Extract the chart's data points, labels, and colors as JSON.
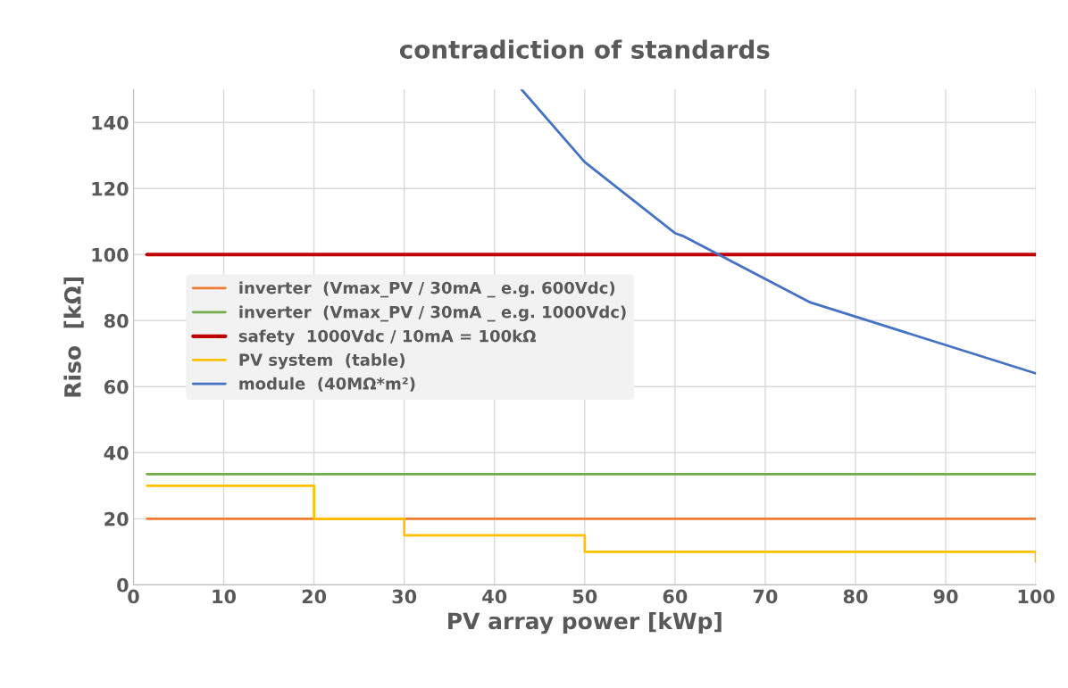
{
  "chart_data": {
    "type": "line",
    "title": "contradiction of standards",
    "xlabel": "PV array power [kWp]",
    "ylabel": "Riso  [kΩ]",
    "xlim": [
      0,
      100
    ],
    "ylim": [
      0,
      150
    ],
    "xticks": [
      0,
      10,
      20,
      30,
      40,
      50,
      60,
      70,
      80,
      90,
      100
    ],
    "yticks": [
      0,
      20,
      40,
      60,
      80,
      100,
      120,
      140
    ],
    "grid": true,
    "legend": "center left",
    "series": [
      {
        "name": "inverter  (Vmax_PV / 30mA _ e.g. 600Vdc)",
        "color": "#ed7d31",
        "x": [
          1.5,
          100
        ],
        "values": [
          20,
          20
        ]
      },
      {
        "name": "inverter  (Vmax_PV / 30mA _ e.g. 1000Vdc)",
        "color": "#70ad47",
        "x": [
          1.5,
          100
        ],
        "values": [
          33.5,
          33.5
        ]
      },
      {
        "name": "safety  1000Vdc / 10mA = 100kΩ",
        "color": "#c00000",
        "x": [
          1.5,
          100
        ],
        "values": [
          100,
          100
        ]
      },
      {
        "name": "PV system  (table)",
        "color": "#ffc000",
        "type": "step",
        "x": [
          1.5,
          20,
          30,
          50,
          100,
          100
        ],
        "values": [
          30,
          20,
          15,
          10,
          10,
          7
        ]
      },
      {
        "name": "module  (40MΩ*m²)",
        "color": "#4472c4",
        "x": [
          43,
          50,
          60,
          61,
          75,
          100
        ],
        "values": [
          150,
          128,
          106.5,
          105.5,
          85.5,
          64
        ]
      }
    ]
  }
}
